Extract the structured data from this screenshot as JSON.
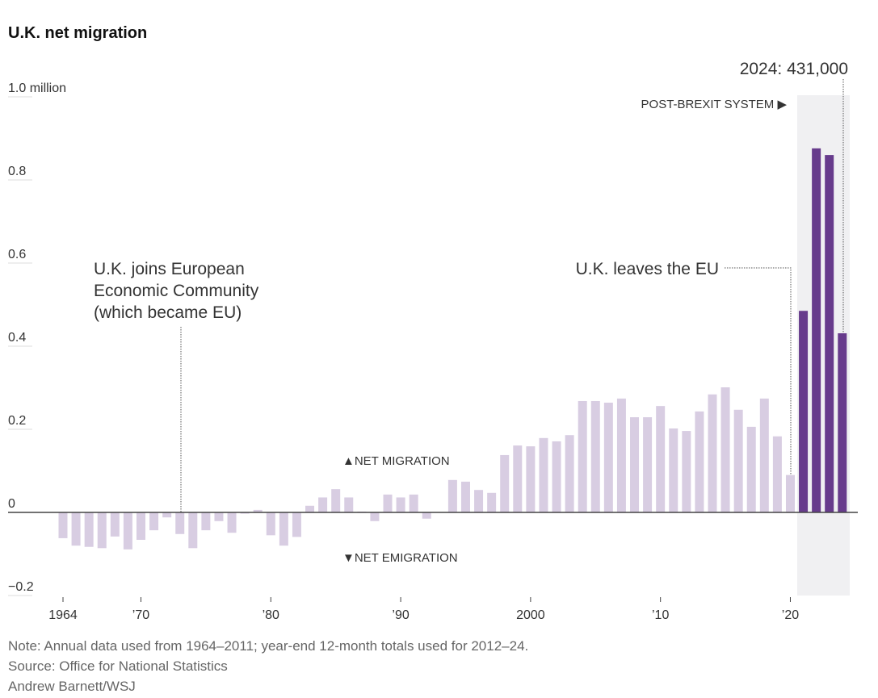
{
  "chart_data": {
    "type": "bar",
    "title": "U.K. net migration",
    "xlabel": "",
    "ylabel": "",
    "ylim": [
      -0.2,
      1.0
    ],
    "y_unit": "million",
    "y_ticks": [
      "1.0 million",
      "0.8",
      "0.6",
      "0.4",
      "0.2",
      "0",
      "−0.2"
    ],
    "y_tick_values": [
      1.0,
      0.8,
      0.6,
      0.4,
      0.2,
      0,
      -0.2
    ],
    "x_ticks": [
      "1964",
      "’70",
      "’80",
      "’90",
      "2000",
      "’10",
      "’20"
    ],
    "x_tick_values": [
      1964,
      1970,
      1980,
      1990,
      2000,
      2010,
      2020
    ],
    "grid": false,
    "x": [
      1964,
      1965,
      1966,
      1967,
      1968,
      1969,
      1970,
      1971,
      1972,
      1973,
      1974,
      1975,
      1976,
      1977,
      1978,
      1979,
      1980,
      1981,
      1982,
      1983,
      1984,
      1985,
      1986,
      1987,
      1988,
      1989,
      1990,
      1991,
      1992,
      1993,
      1994,
      1995,
      1996,
      1997,
      1998,
      1999,
      2000,
      2001,
      2002,
      2003,
      2004,
      2005,
      2006,
      2007,
      2008,
      2009,
      2010,
      2011,
      2012,
      2013,
      2014,
      2015,
      2016,
      2017,
      2018,
      2019,
      2020,
      2021,
      2022,
      2023,
      2024
    ],
    "values": [
      -0.062,
      -0.08,
      -0.083,
      -0.086,
      -0.058,
      -0.089,
      -0.066,
      -0.043,
      -0.012,
      -0.052,
      -0.086,
      -0.043,
      -0.021,
      -0.049,
      -0.003,
      0.006,
      -0.055,
      -0.08,
      -0.059,
      0.016,
      0.036,
      0.056,
      0.036,
      0.002,
      -0.021,
      0.043,
      0.036,
      0.043,
      -0.015,
      0.001,
      0.078,
      0.074,
      0.054,
      0.047,
      0.138,
      0.161,
      0.159,
      0.179,
      0.171,
      0.186,
      0.268,
      0.268,
      0.264,
      0.274,
      0.229,
      0.229,
      0.256,
      0.202,
      0.196,
      0.243,
      0.284,
      0.301,
      0.247,
      0.206,
      0.274,
      0.183,
      0.09,
      0.485,
      0.876,
      0.86,
      0.431
    ],
    "highlight_from_year": 2021,
    "colors": {
      "pre": "#d8cde2",
      "post": "#673b8c",
      "shade": "#f0f0f2",
      "axis": "#444444"
    },
    "annotations": {
      "eec_lines": [
        "U.K. joins European",
        "Economic Community",
        "(which became EU)"
      ],
      "leaves_eu": "U.K. leaves the EU",
      "latest": "2024: 431,000",
      "post_brexit": "POST-BREXIT SYSTEM ▶",
      "net_migration": "▲NET MIGRATION",
      "net_emigration": "▼NET EMIGRATION"
    },
    "notes": {
      "note": "Note: Annual data used from 1964–2011; year-end 12-month totals used for 2012–24.",
      "source": "Source: Office for National Statistics",
      "credit": "Andrew Barnett/WSJ"
    }
  }
}
